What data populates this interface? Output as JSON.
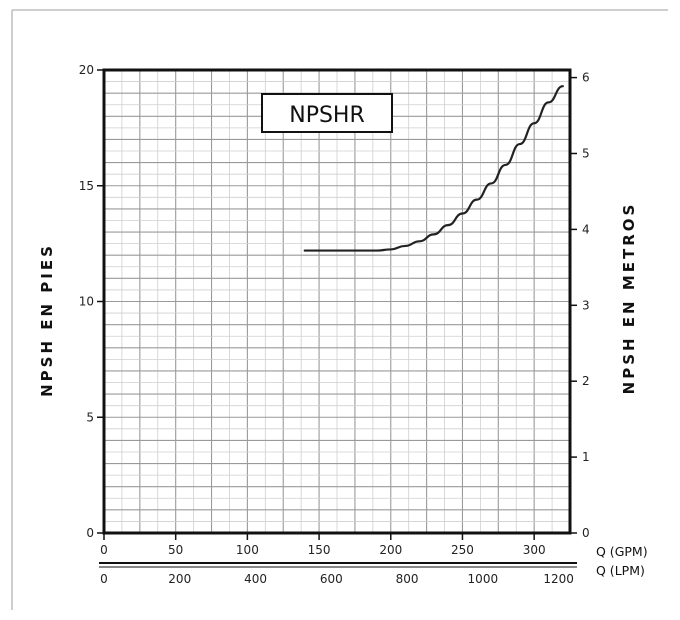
{
  "chart_data": {
    "type": "line",
    "title": "NPSHR",
    "ylabel_left": "NPSH  EN  PIES",
    "ylabel_right": "NPSH  EN  METROS",
    "xlabel_gpm": "Q (GPM)",
    "xlabel_lpm": "Q (LPM)",
    "xlim_gpm": [
      0,
      325
    ],
    "ylim_ft": [
      0,
      20
    ],
    "ylim_m": [
      0,
      6.1
    ],
    "x_ticks_gpm": [
      "0",
      "50",
      "100",
      "150",
      "200",
      "250",
      "300"
    ],
    "x_ticks_lpm": [
      "0",
      "200",
      "400",
      "600",
      "800",
      "1000",
      "1200"
    ],
    "y_ticks_left": [
      "0",
      "5",
      "10",
      "15",
      "20"
    ],
    "y_ticks_right": [
      "0",
      "1",
      "2",
      "3",
      "4",
      "5",
      "6"
    ],
    "grid": true,
    "series": [
      {
        "x": [
          140,
          150,
          160,
          170,
          180,
          190,
          200,
          210,
          220,
          230,
          240,
          250,
          260,
          270,
          280,
          290,
          300,
          310,
          320
        ],
        "y": [
          12.2,
          12.2,
          12.2,
          12.2,
          12.2,
          12.2,
          12.25,
          12.4,
          12.6,
          12.9,
          13.3,
          13.8,
          14.4,
          15.1,
          15.9,
          16.8,
          17.7,
          18.6,
          19.3
        ]
      }
    ]
  }
}
